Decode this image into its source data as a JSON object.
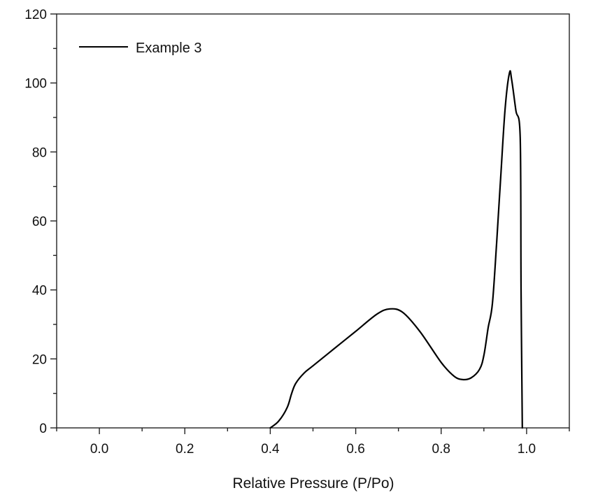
{
  "chart_data": {
    "type": "line",
    "title": "",
    "xlabel": "Relative Pressure (P/Po)",
    "ylabel": "",
    "xlim": [
      -0.1,
      1.1
    ],
    "ylim": [
      0,
      120
    ],
    "grid": false,
    "legend_position": "top-left",
    "x_ticks": [
      0.0,
      0.2,
      0.4,
      0.6,
      0.8,
      1.0
    ],
    "x_tick_labels": [
      "0.0",
      "0.2",
      "0.4",
      "0.6",
      "0.8",
      "1.0"
    ],
    "y_ticks": [
      0,
      20,
      40,
      60,
      80,
      100,
      120
    ],
    "y_tick_labels": [
      "0",
      "20",
      "40",
      "60",
      "80",
      "100",
      "120"
    ],
    "series": [
      {
        "name": "Example 3",
        "color": "#000000",
        "x": [
          0.4,
          0.42,
          0.44,
          0.45,
          0.46,
          0.48,
          0.5,
          0.55,
          0.6,
          0.65,
          0.68,
          0.71,
          0.75,
          0.8,
          0.83,
          0.85,
          0.87,
          0.89,
          0.9,
          0.91,
          0.92,
          0.93,
          0.94,
          0.95,
          0.96,
          0.965,
          0.975,
          0.985,
          0.987,
          0.99
        ],
        "y": [
          0,
          2,
          6,
          10,
          13,
          16,
          18,
          23,
          28,
          33,
          34.5,
          33.5,
          28,
          19,
          15,
          14,
          14.5,
          17,
          21,
          29,
          36,
          54,
          74,
          93,
          103,
          101,
          92,
          84,
          40,
          0
        ]
      }
    ]
  }
}
